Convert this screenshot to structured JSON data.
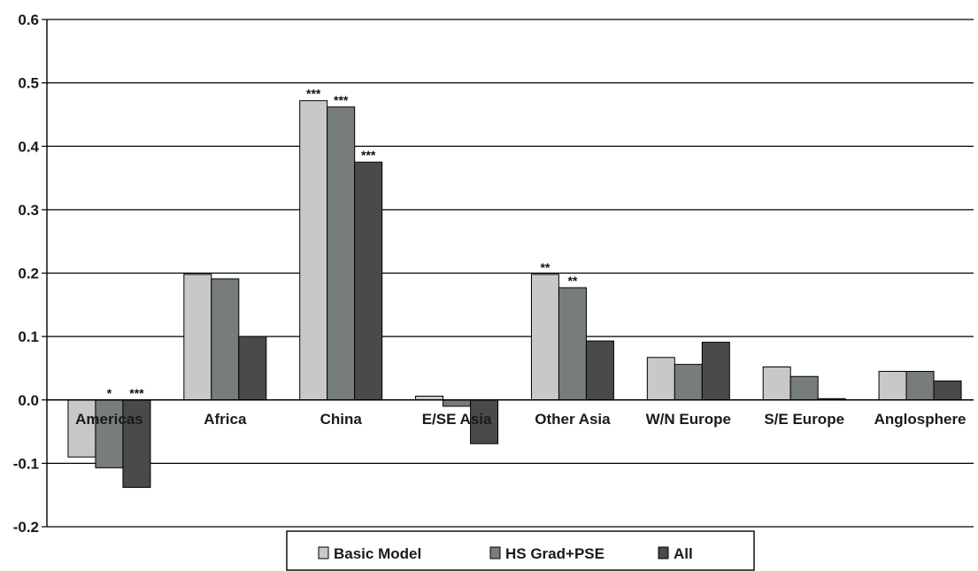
{
  "chart_data": {
    "type": "bar",
    "categories": [
      "Americas",
      "Africa",
      "China",
      "E/SE Asia",
      "Other Asia",
      "W/N Europe",
      "S/E Europe",
      "Anglosphere"
    ],
    "series": [
      {
        "name": "Basic Model",
        "color": "#c8c8c8",
        "values": [
          -0.09,
          0.198,
          0.472,
          0.006,
          0.198,
          0.067,
          0.052,
          0.045
        ],
        "significance": [
          "",
          "",
          "***",
          "",
          "**",
          "",
          "",
          ""
        ]
      },
      {
        "name": "HS Grad+PSE",
        "color": "#767d7c",
        "values": [
          -0.107,
          0.191,
          0.462,
          -0.01,
          0.177,
          0.056,
          0.037,
          0.045
        ],
        "significance": [
          "*",
          "",
          "***",
          "",
          "**",
          "",
          "",
          ""
        ]
      },
      {
        "name": "All",
        "color": "#4a4a4a",
        "values": [
          -0.138,
          0.1,
          0.375,
          -0.069,
          0.093,
          0.091,
          0.002,
          0.03
        ],
        "significance": [
          "***",
          "",
          "***",
          "",
          "",
          "",
          "",
          ""
        ]
      }
    ],
    "ylim": [
      -0.2,
      0.6
    ],
    "yticks": [
      "0.6",
      "0.5",
      "0.4",
      "0.3",
      "0.2",
      "0.1",
      "0.0",
      "-0.1",
      "-0.2"
    ],
    "ytick_values": [
      0.6,
      0.5,
      0.4,
      0.3,
      0.2,
      0.1,
      0.0,
      -0.1,
      -0.2
    ],
    "grid": true,
    "legend_position": "bottom"
  }
}
